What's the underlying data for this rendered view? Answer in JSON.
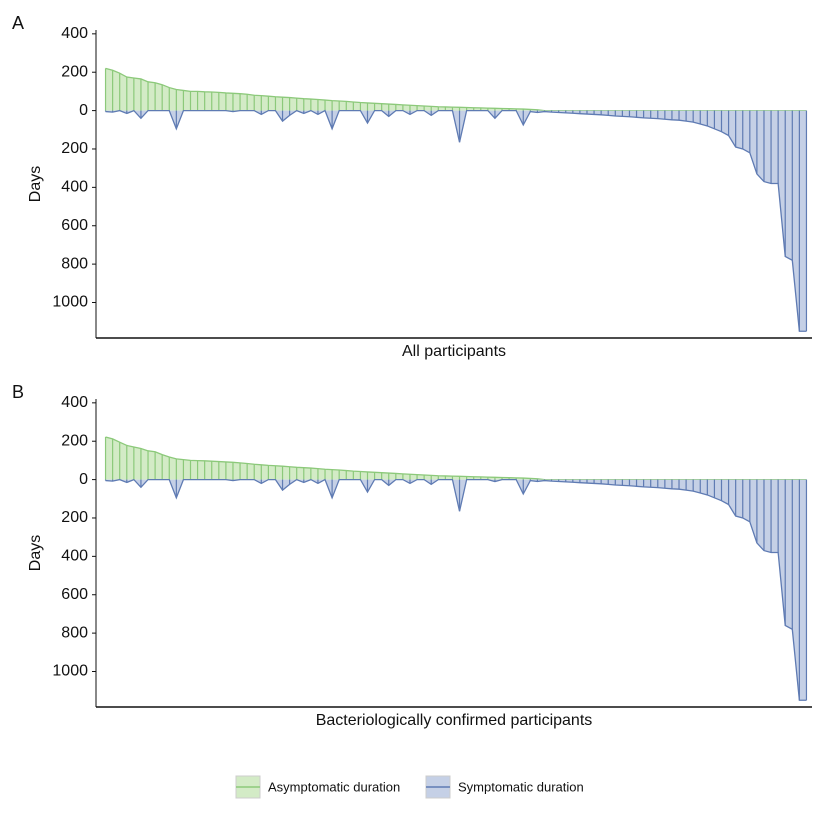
{
  "chart_data": [
    {
      "type": "duration",
      "label": "A",
      "xlabel": "All participants",
      "ylabel": "Days",
      "ylim": [
        -1185,
        420
      ],
      "yticks": [
        {
          "value": 400,
          "label": "400"
        },
        {
          "value": 200,
          "label": "200"
        },
        0,
        {
          "value": -200,
          "label": "200"
        },
        {
          "value": -400,
          "label": "400"
        },
        {
          "value": -600,
          "label": "600"
        },
        {
          "value": -800,
          "label": "800"
        },
        {
          "value": -1000,
          "label": "1000"
        }
      ],
      "series": [
        {
          "name": "Asymptomatic duration",
          "color": "#8cc97a",
          "fill": "#d3ebc6",
          "values": [
            220,
            210,
            195,
            175,
            170,
            165,
            150,
            145,
            135,
            120,
            110,
            105,
            100,
            100,
            98,
            97,
            95,
            92,
            90,
            88,
            85,
            80,
            78,
            75,
            72,
            70,
            68,
            65,
            62,
            60,
            58,
            55,
            52,
            50,
            48,
            45,
            42,
            40,
            38,
            36,
            34,
            32,
            30,
            28,
            26,
            24,
            22,
            20,
            19,
            18,
            17,
            16,
            15,
            14,
            13,
            12,
            11,
            10,
            9,
            8,
            6,
            4,
            0,
            0,
            0,
            0,
            0,
            0,
            0,
            0,
            0,
            0,
            0,
            0,
            0,
            0,
            0,
            0,
            0,
            0,
            0,
            0,
            0,
            0,
            0,
            0,
            0,
            0,
            0,
            0,
            0,
            0,
            0,
            0,
            0,
            0,
            0,
            0,
            0,
            0
          ]
        },
        {
          "name": "Symptomatic duration",
          "color": "#5f7bb3",
          "fill": "#c5d0e6",
          "values": [
            -5,
            -8,
            0,
            -15,
            0,
            -40,
            0,
            0,
            0,
            0,
            -95,
            0,
            0,
            0,
            0,
            0,
            0,
            0,
            -5,
            0,
            0,
            0,
            -20,
            0,
            0,
            -55,
            -25,
            0,
            -15,
            0,
            -20,
            0,
            -95,
            0,
            0,
            0,
            0,
            -65,
            0,
            0,
            -30,
            0,
            0,
            -20,
            0,
            0,
            -25,
            0,
            0,
            0,
            -165,
            0,
            0,
            0,
            0,
            -40,
            0,
            0,
            0,
            -75,
            -5,
            -10,
            -5,
            -8,
            -10,
            -12,
            -14,
            -16,
            -18,
            -20,
            -22,
            -25,
            -28,
            -30,
            -32,
            -35,
            -38,
            -40,
            -42,
            -45,
            -48,
            -50,
            -55,
            -60,
            -70,
            -80,
            -95,
            -110,
            -130,
            -190,
            -200,
            -220,
            -330,
            -370,
            -380,
            -380,
            -760,
            -780,
            -1150,
            -1150
          ]
        }
      ]
    },
    {
      "type": "duration",
      "label": "B",
      "xlabel": "Bacteriologically confirmed participants",
      "ylabel": "Days",
      "ylim": [
        -1185,
        420
      ],
      "yticks": [
        {
          "value": 400,
          "label": "400"
        },
        {
          "value": 200,
          "label": "200"
        },
        0,
        {
          "value": -200,
          "label": "200"
        },
        {
          "value": -400,
          "label": "400"
        },
        {
          "value": -600,
          "label": "600"
        },
        {
          "value": -800,
          "label": "800"
        },
        {
          "value": -1000,
          "label": "1000"
        }
      ],
      "series": [
        {
          "name": "Asymptomatic duration",
          "color": "#8cc97a",
          "fill": "#d3ebc6",
          "values": [
            222,
            212,
            195,
            178,
            170,
            162,
            150,
            145,
            130,
            118,
            108,
            104,
            100,
            99,
            98,
            96,
            94,
            92,
            90,
            87,
            84,
            80,
            77,
            74,
            72,
            70,
            67,
            64,
            62,
            60,
            57,
            54,
            52,
            50,
            47,
            44,
            42,
            40,
            38,
            36,
            34,
            32,
            30,
            28,
            26,
            24,
            22,
            20,
            19,
            18,
            17,
            16,
            15,
            14,
            13,
            12,
            11,
            10,
            9,
            8,
            6,
            4,
            0,
            0,
            0,
            0,
            0,
            0,
            0,
            0,
            0,
            0,
            0,
            0,
            0,
            0,
            0,
            0,
            0,
            0,
            0,
            0,
            0,
            0,
            0,
            0,
            0,
            0,
            0,
            0,
            0,
            0,
            0,
            0,
            0,
            0,
            0,
            0,
            0,
            0
          ]
        },
        {
          "name": "Symptomatic duration",
          "color": "#5f7bb3",
          "fill": "#c5d0e6",
          "values": [
            -5,
            -8,
            0,
            -15,
            0,
            -40,
            0,
            0,
            0,
            0,
            -95,
            0,
            0,
            0,
            0,
            0,
            0,
            0,
            -5,
            0,
            0,
            0,
            -20,
            0,
            0,
            -55,
            -25,
            0,
            -15,
            0,
            -20,
            0,
            -95,
            0,
            0,
            0,
            0,
            -65,
            0,
            0,
            -30,
            0,
            0,
            -20,
            0,
            0,
            -25,
            0,
            0,
            0,
            -165,
            0,
            0,
            0,
            0,
            -10,
            0,
            0,
            0,
            -75,
            -5,
            -10,
            -5,
            -8,
            -10,
            -12,
            -14,
            -16,
            -18,
            -20,
            -22,
            -25,
            -28,
            -30,
            -32,
            -35,
            -38,
            -40,
            -42,
            -45,
            -48,
            -50,
            -55,
            -60,
            -70,
            -80,
            -95,
            -110,
            -130,
            -190,
            -200,
            -220,
            -330,
            -370,
            -380,
            -380,
            -760,
            -780,
            -1150,
            -1150
          ]
        }
      ]
    }
  ]
}
